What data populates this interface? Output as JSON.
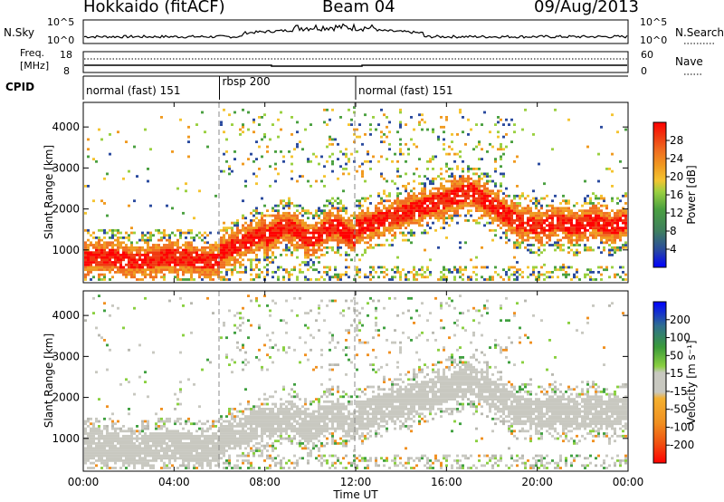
{
  "header": {
    "station": "Hokkaido (fitACF)",
    "beam": "Beam 04",
    "date": "09/Aug/2013"
  },
  "nsky_panel": {
    "left_label": "N.Sky",
    "right_label": "N.Search",
    "left_ticks": [
      "10^5",
      "10^0"
    ],
    "right_ticks": [
      "10^5",
      "10^0"
    ]
  },
  "freq_panel": {
    "left_label_line1": "Freq.",
    "left_label_line2": "[MHz]",
    "right_label": "Nave",
    "left_ticks": [
      "18",
      "8"
    ],
    "right_ticks": [
      "60",
      "0"
    ]
  },
  "cpid_panel": {
    "label": "CPID",
    "modes": [
      {
        "label": "normal (fast) 151",
        "start_hour": 0,
        "end_hour": 6
      },
      {
        "label": "rbsp 200",
        "start_hour": 6,
        "end_hour": 12
      },
      {
        "label": "normal (fast) 151",
        "start_hour": 12,
        "end_hour": 24
      }
    ]
  },
  "x_axis": {
    "label": "Time UT",
    "ticks": [
      "00:00",
      "04:00",
      "08:00",
      "12:00",
      "16:00",
      "20:00",
      "00:00"
    ],
    "range_hours": [
      0,
      24
    ]
  },
  "chart_data": [
    {
      "type": "heatmap",
      "quantity": "power",
      "ylabel": "Slant Range [km]",
      "yticks": [
        1000,
        2000,
        3000,
        4000
      ],
      "ylim": [
        200,
        4600
      ],
      "colorbar": {
        "label": "Power [dB]",
        "range": [
          0,
          32
        ],
        "tick_labels": [
          "28",
          "24",
          "20",
          "16",
          "12",
          "8",
          "4"
        ],
        "colors": [
          "#0000ff",
          "#2a4a9e",
          "#3f7f5f",
          "#2f9a3a",
          "#7cc93c",
          "#f4c430",
          "#f09a20",
          "#f07020",
          "#f04a10",
          "#e82010",
          "#ff0000"
        ]
      }
    },
    {
      "type": "heatmap",
      "quantity": "velocity",
      "ylabel": "Slant Range [km]",
      "yticks": [
        1000,
        2000,
        3000,
        4000
      ],
      "ylim": [
        200,
        4600
      ],
      "colorbar": {
        "label": "Velocity [m s⁻¹]",
        "range": [
          -250,
          250
        ],
        "tick_labels": [
          "200",
          "100",
          "50",
          "15",
          "-15",
          "-50",
          "-100",
          "-200"
        ],
        "colors": [
          "#ff0000",
          "#f05010",
          "#f08010",
          "#f0a020",
          "#c8c8c0",
          "#c8c8c0",
          "#8ad040",
          "#40a040",
          "#2f7f6f",
          "#2a4a9e",
          "#0000ff"
        ]
      }
    }
  ]
}
